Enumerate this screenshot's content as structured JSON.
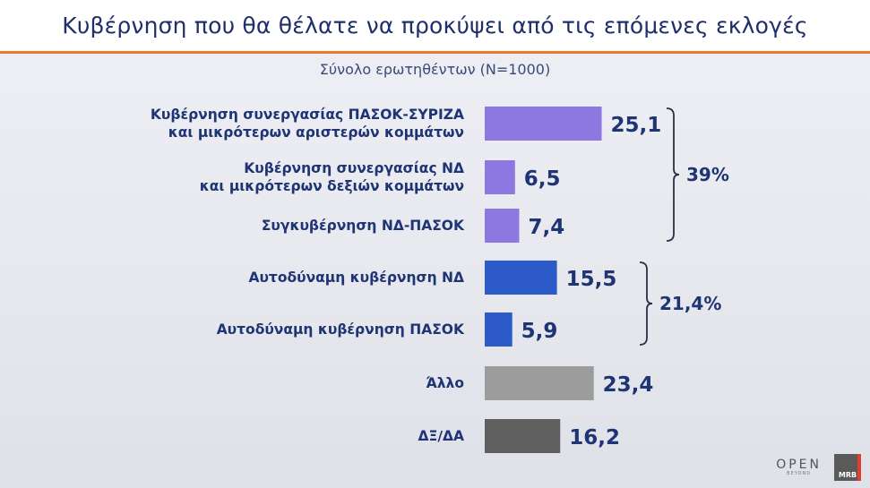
{
  "header": {
    "title": "Κυβέρνηση που θα θέλατε να προκύψει από τις επόμενες εκλογές",
    "subtitle": "Σύνολο ερωτηθέντων (N=1000)"
  },
  "chart_data": {
    "type": "bar",
    "orientation": "horizontal",
    "title": "Κυβέρνηση που θα θέλατε να προκύψει από τις επόμενες εκλογές",
    "subtitle": "Σύνολο ερωτηθέντων (N=1000)",
    "categories": [
      [
        "Κυβέρνηση συνεργασίας ΠΑΣΟΚ-ΣΥΡΙΖΑ",
        "και μικρότερων αριστερών κομμάτων"
      ],
      [
        "Κυβέρνηση συνεργασίας ΝΔ",
        "και μικρότερων δεξιών κομμάτων"
      ],
      [
        "Συγκυβέρνηση ΝΔ-ΠΑΣΟΚ"
      ],
      [
        "Αυτοδύναμη κυβέρνηση ΝΔ"
      ],
      [
        "Αυτοδύναμη κυβέρνηση ΠΑΣΟΚ"
      ],
      [
        "Άλλο"
      ],
      [
        "ΔΞ/ΔΑ"
      ]
    ],
    "values": [
      25.1,
      6.5,
      7.4,
      15.5,
      5.9,
      23.4,
      16.2
    ],
    "value_labels": [
      "25,1",
      "6,5",
      "7,4",
      "15,5",
      "5,9",
      "23,4",
      "16,2"
    ],
    "bar_colors": [
      "#8c78e0",
      "#8c78e0",
      "#8c78e0",
      "#2c5bc9",
      "#2c5bc9",
      "#9c9c9c",
      "#5f5f5f"
    ],
    "groups": [
      {
        "label": "39%",
        "from": 0,
        "to": 2
      },
      {
        "label": "21,4%",
        "from": 3,
        "to": 4
      }
    ],
    "xlim": [
      0,
      30
    ],
    "grid": false,
    "legend": "none"
  },
  "logos": {
    "open_text": "OPEN",
    "open_sub": "BEYOND",
    "mrb_text": "MRB"
  }
}
